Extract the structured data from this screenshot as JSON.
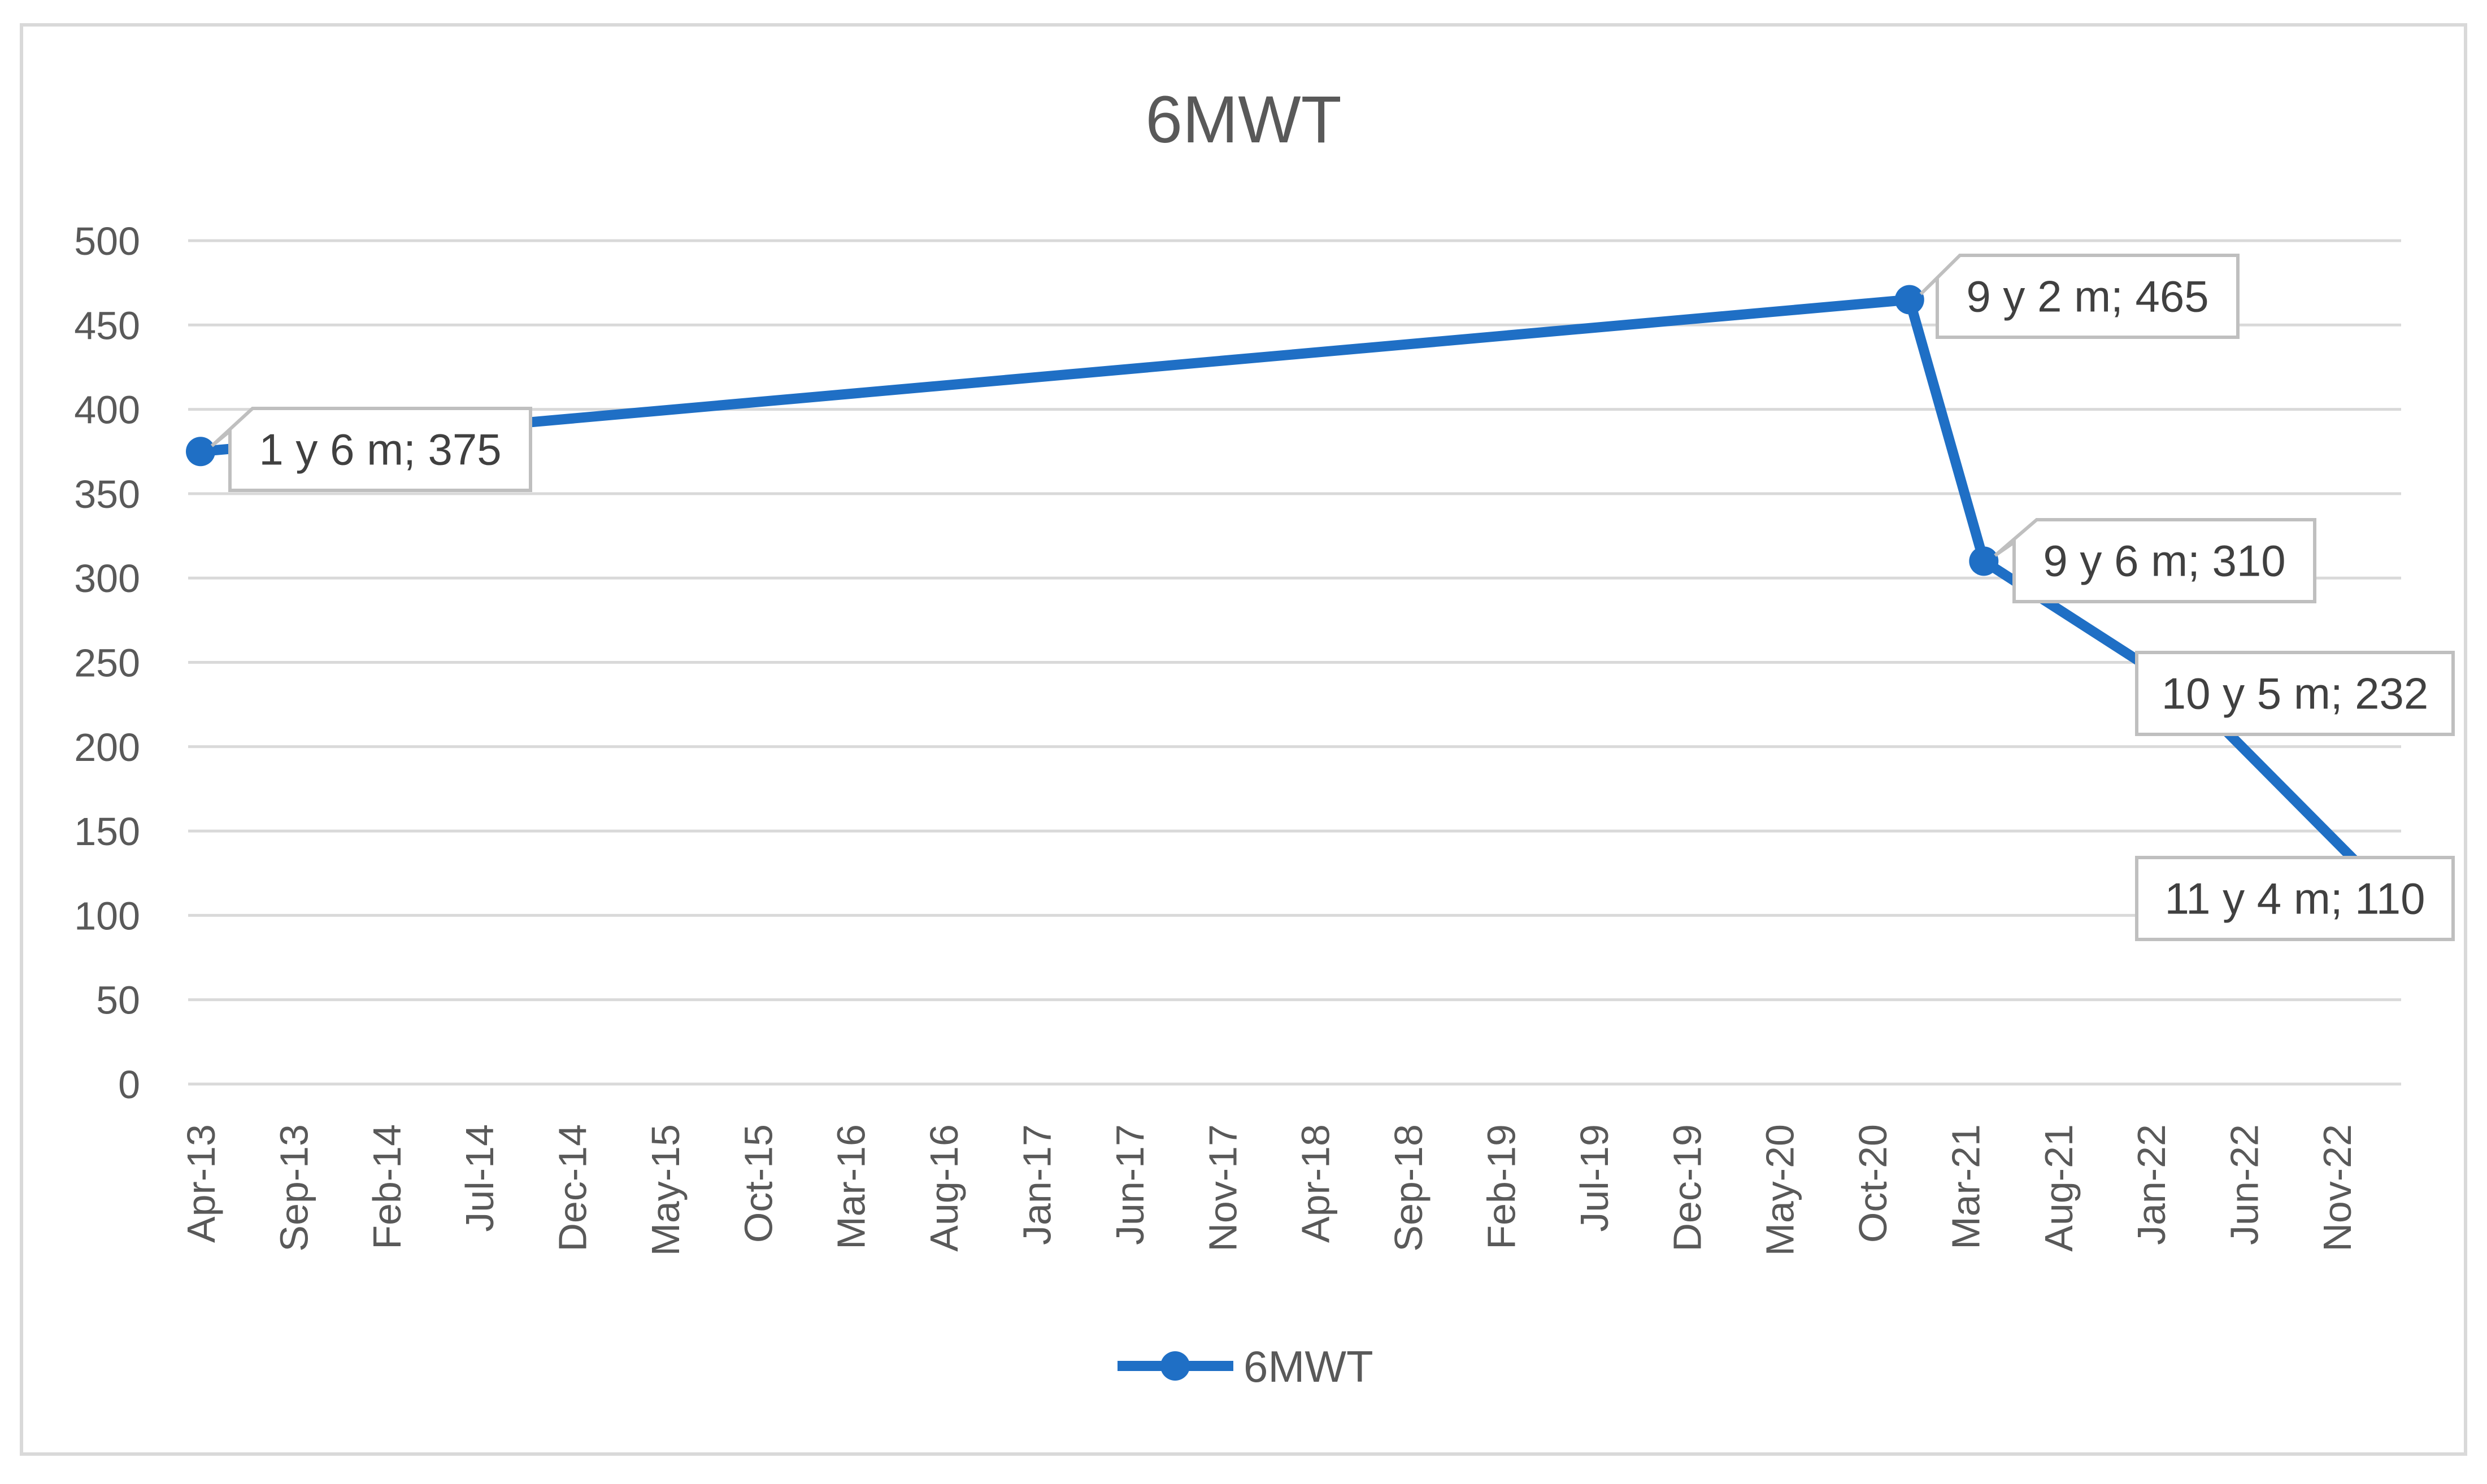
{
  "chart_data": {
    "type": "line",
    "title": "6MWT",
    "xlabel": "",
    "ylabel": "",
    "ylim": [
      0,
      500
    ],
    "yticks": [
      0,
      50,
      100,
      150,
      200,
      250,
      300,
      350,
      400,
      450,
      500
    ],
    "x_tick_labels": [
      "Apr-13",
      "Sep-13",
      "Feb-14",
      "Jul-14",
      "Dec-14",
      "May-15",
      "Oct-15",
      "Mar-16",
      "Aug-16",
      "Jan-17",
      "Jun-17",
      "Nov-17",
      "Apr-18",
      "Sep-18",
      "Feb-19",
      "Jul-19",
      "Dec-19",
      "May-20",
      "Oct-20",
      "Mar-21",
      "Aug-21",
      "Jan-22",
      "Jun-22",
      "Nov-22"
    ],
    "x_start": "Apr-13",
    "x_step_months": 5,
    "grid": true,
    "legend_position": "bottom",
    "series": [
      {
        "name": "6MWT",
        "color": "#1F6FC5",
        "points": [
          {
            "x": "2013-04",
            "y": 375,
            "label": "1 y 6 m; 375"
          },
          {
            "x": "2020-12",
            "y": 465,
            "label": "9 y 2 m; 465"
          },
          {
            "x": "2021-04",
            "y": 310,
            "label": "9 y 6 m; 310"
          },
          {
            "x": "2022-03",
            "y": 232,
            "label": "10 y 5 m; 232"
          },
          {
            "x": "2023-02",
            "y": 110,
            "label": "11 y 4 m; 110"
          }
        ]
      }
    ]
  }
}
